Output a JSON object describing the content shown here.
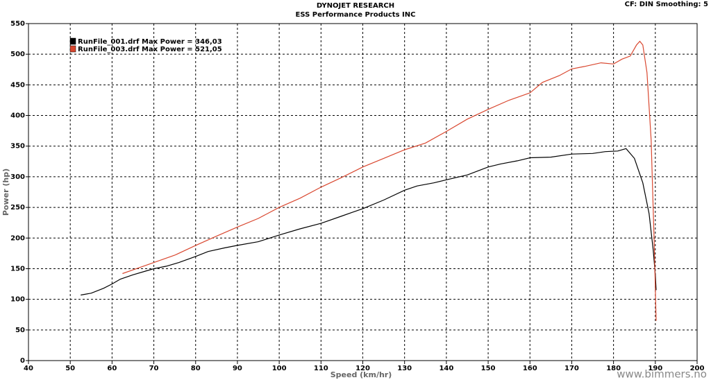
{
  "chart_data": {
    "type": "line",
    "title": "DYNOJET RESEARCH",
    "subtitle": "ESS Performance Products INC",
    "annotation": "CF: DIN  Smoothing: 5",
    "xlabel": "Speed (km/hr)",
    "ylabel": "Power (hp)",
    "watermark": "www.bimmers.no",
    "xlim": [
      40,
      200
    ],
    "xticks": [
      40,
      50,
      60,
      70,
      80,
      90,
      100,
      110,
      120,
      130,
      140,
      150,
      160,
      170,
      180,
      190,
      200
    ],
    "ylim": [
      0,
      550
    ],
    "yticks": [
      0,
      50,
      100,
      150,
      200,
      250,
      300,
      350,
      400,
      450,
      500,
      550
    ],
    "grid": true,
    "legend": "upper-left",
    "series": [
      {
        "name": "RunFile_001.drf Max Power = 346,03",
        "color": "#000000",
        "x": [
          52.5,
          55,
          58,
          60,
          62,
          65,
          68,
          70,
          73,
          76,
          80,
          83,
          87,
          90,
          95,
          100,
          105,
          110,
          115,
          120,
          125,
          130,
          133,
          137,
          140,
          145,
          150,
          153,
          157,
          160,
          165,
          170,
          175,
          178,
          181,
          183,
          185,
          187,
          188.5,
          189.5,
          190,
          190.2
        ],
        "values": [
          107,
          110,
          118,
          125,
          133,
          140,
          146,
          150,
          154,
          160,
          170,
          178,
          184,
          188,
          194,
          205,
          215,
          224,
          236,
          248,
          262,
          278,
          285,
          290,
          295,
          303,
          316,
          321,
          326,
          331,
          332,
          337,
          338,
          341,
          342,
          346,
          330,
          290,
          240,
          180,
          140,
          115
        ]
      },
      {
        "name": "RunFile_003.drf Max Power = 521,05",
        "color": "#d9472f",
        "x": [
          62.5,
          65,
          70,
          75,
          80,
          85,
          90,
          95,
          100,
          105,
          110,
          115,
          120,
          125,
          130,
          135,
          140,
          145,
          150,
          155,
          160,
          163,
          167,
          170,
          173,
          177,
          180,
          182,
          184,
          185.5,
          186.3,
          187,
          188,
          189,
          189.7,
          190.2
        ],
        "values": [
          142,
          148,
          160,
          172,
          188,
          203,
          218,
          232,
          250,
          265,
          283,
          299,
          316,
          330,
          344,
          355,
          374,
          394,
          410,
          425,
          437,
          454,
          465,
          476,
          480,
          486,
          484,
          492,
          497,
          515,
          521,
          515,
          470,
          360,
          200,
          65
        ]
      }
    ]
  }
}
